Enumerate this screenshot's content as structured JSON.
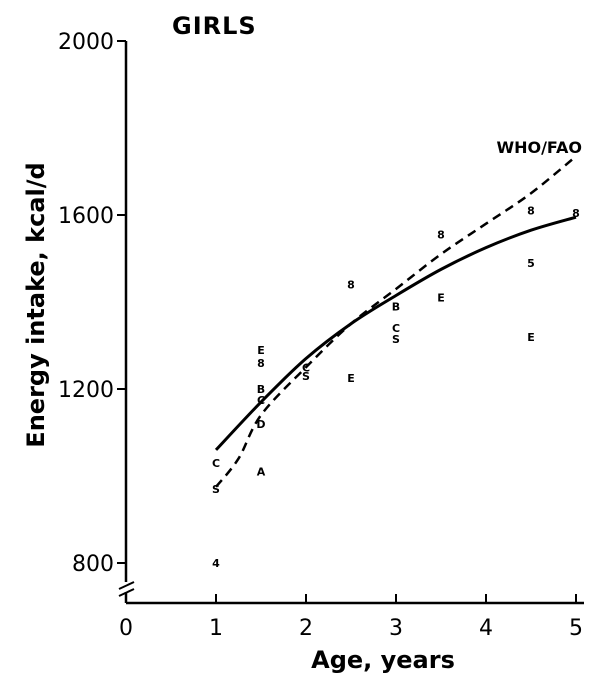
{
  "chart_data": {
    "type": "line",
    "title": "GIRLS",
    "xlabel": "Age, years",
    "ylabel": "Energy intake, kcal/d",
    "xlim": [
      0,
      5
    ],
    "ylim": [
      720,
      2000
    ],
    "y_axis_break": true,
    "x_ticks": [
      "0",
      "1",
      "2",
      "3",
      "4",
      "5"
    ],
    "y_ticks": [
      "800",
      "1200",
      "1600",
      "2000"
    ],
    "grid": false,
    "series": [
      {
        "name": "",
        "style": "solid",
        "x": [
          1.0,
          1.5,
          2.0,
          2.5,
          3.0,
          3.5,
          4.0,
          4.5,
          5.0
        ],
        "y": [
          1060,
          1170,
          1270,
          1350,
          1415,
          1475,
          1525,
          1565,
          1595
        ]
      },
      {
        "name": "WHO/FAO",
        "style": "dashed",
        "x": [
          1.0,
          1.25,
          1.5,
          2.0,
          2.5,
          3.0,
          3.5,
          4.0,
          4.5,
          5.0
        ],
        "y": [
          975,
          1040,
          1140,
          1250,
          1350,
          1430,
          1510,
          1580,
          1650,
          1735
        ]
      }
    ],
    "legend": [
      {
        "label": "WHO/FAO",
        "series": 1,
        "placement": "top-right"
      }
    ],
    "points": [
      {
        "label": "4",
        "x": 1.0,
        "y": 800
      },
      {
        "label": "C",
        "x": 1.0,
        "y": 1030
      },
      {
        "label": "S",
        "x": 1.0,
        "y": 970
      },
      {
        "label": "A",
        "x": 1.5,
        "y": 1010
      },
      {
        "label": "E",
        "x": 1.5,
        "y": 1290
      },
      {
        "label": "8",
        "x": 1.5,
        "y": 1260
      },
      {
        "label": "B",
        "x": 1.5,
        "y": 1200
      },
      {
        "label": "C",
        "x": 1.5,
        "y": 1175
      },
      {
        "label": "D",
        "x": 1.5,
        "y": 1120
      },
      {
        "label": "C",
        "x": 2.0,
        "y": 1250
      },
      {
        "label": "S",
        "x": 2.0,
        "y": 1230
      },
      {
        "label": "8",
        "x": 2.5,
        "y": 1440
      },
      {
        "label": "E",
        "x": 2.5,
        "y": 1225
      },
      {
        "label": "B",
        "x": 3.0,
        "y": 1390
      },
      {
        "label": "C",
        "x": 3.0,
        "y": 1340
      },
      {
        "label": "S",
        "x": 3.0,
        "y": 1315
      },
      {
        "label": "8",
        "x": 3.5,
        "y": 1555
      },
      {
        "label": "E",
        "x": 3.5,
        "y": 1410
      },
      {
        "label": "8",
        "x": 4.5,
        "y": 1610
      },
      {
        "label": "5",
        "x": 4.5,
        "y": 1490
      },
      {
        "label": "E",
        "x": 4.5,
        "y": 1320
      },
      {
        "label": "8",
        "x": 5.0,
        "y": 1605
      }
    ]
  }
}
